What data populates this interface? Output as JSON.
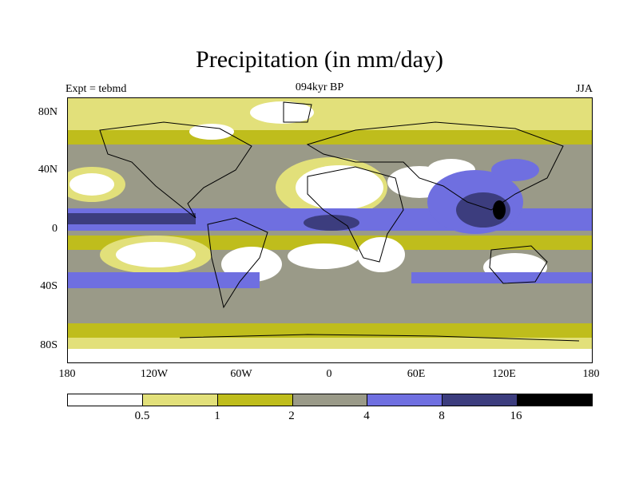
{
  "title": "Precipitation (in mm/day)",
  "subtitle": "094kyr BP",
  "expt_label": "Expt = tebmd",
  "season_label": "JJA",
  "lat_ticks": [
    "80N",
    "40N",
    "0",
    "40S",
    "80S"
  ],
  "lon_ticks": [
    "180",
    "120W",
    "60W",
    "0",
    "60E",
    "120E",
    "180"
  ],
  "colorbar": {
    "colors": [
      "#ffffff",
      "#e2e07a",
      "#bfbd1c",
      "#9a9a88",
      "#6f6fe0",
      "#3c3d7e",
      "#000000"
    ],
    "labels": [
      "0.5",
      "1",
      "2",
      "4",
      "8",
      "16"
    ]
  }
}
